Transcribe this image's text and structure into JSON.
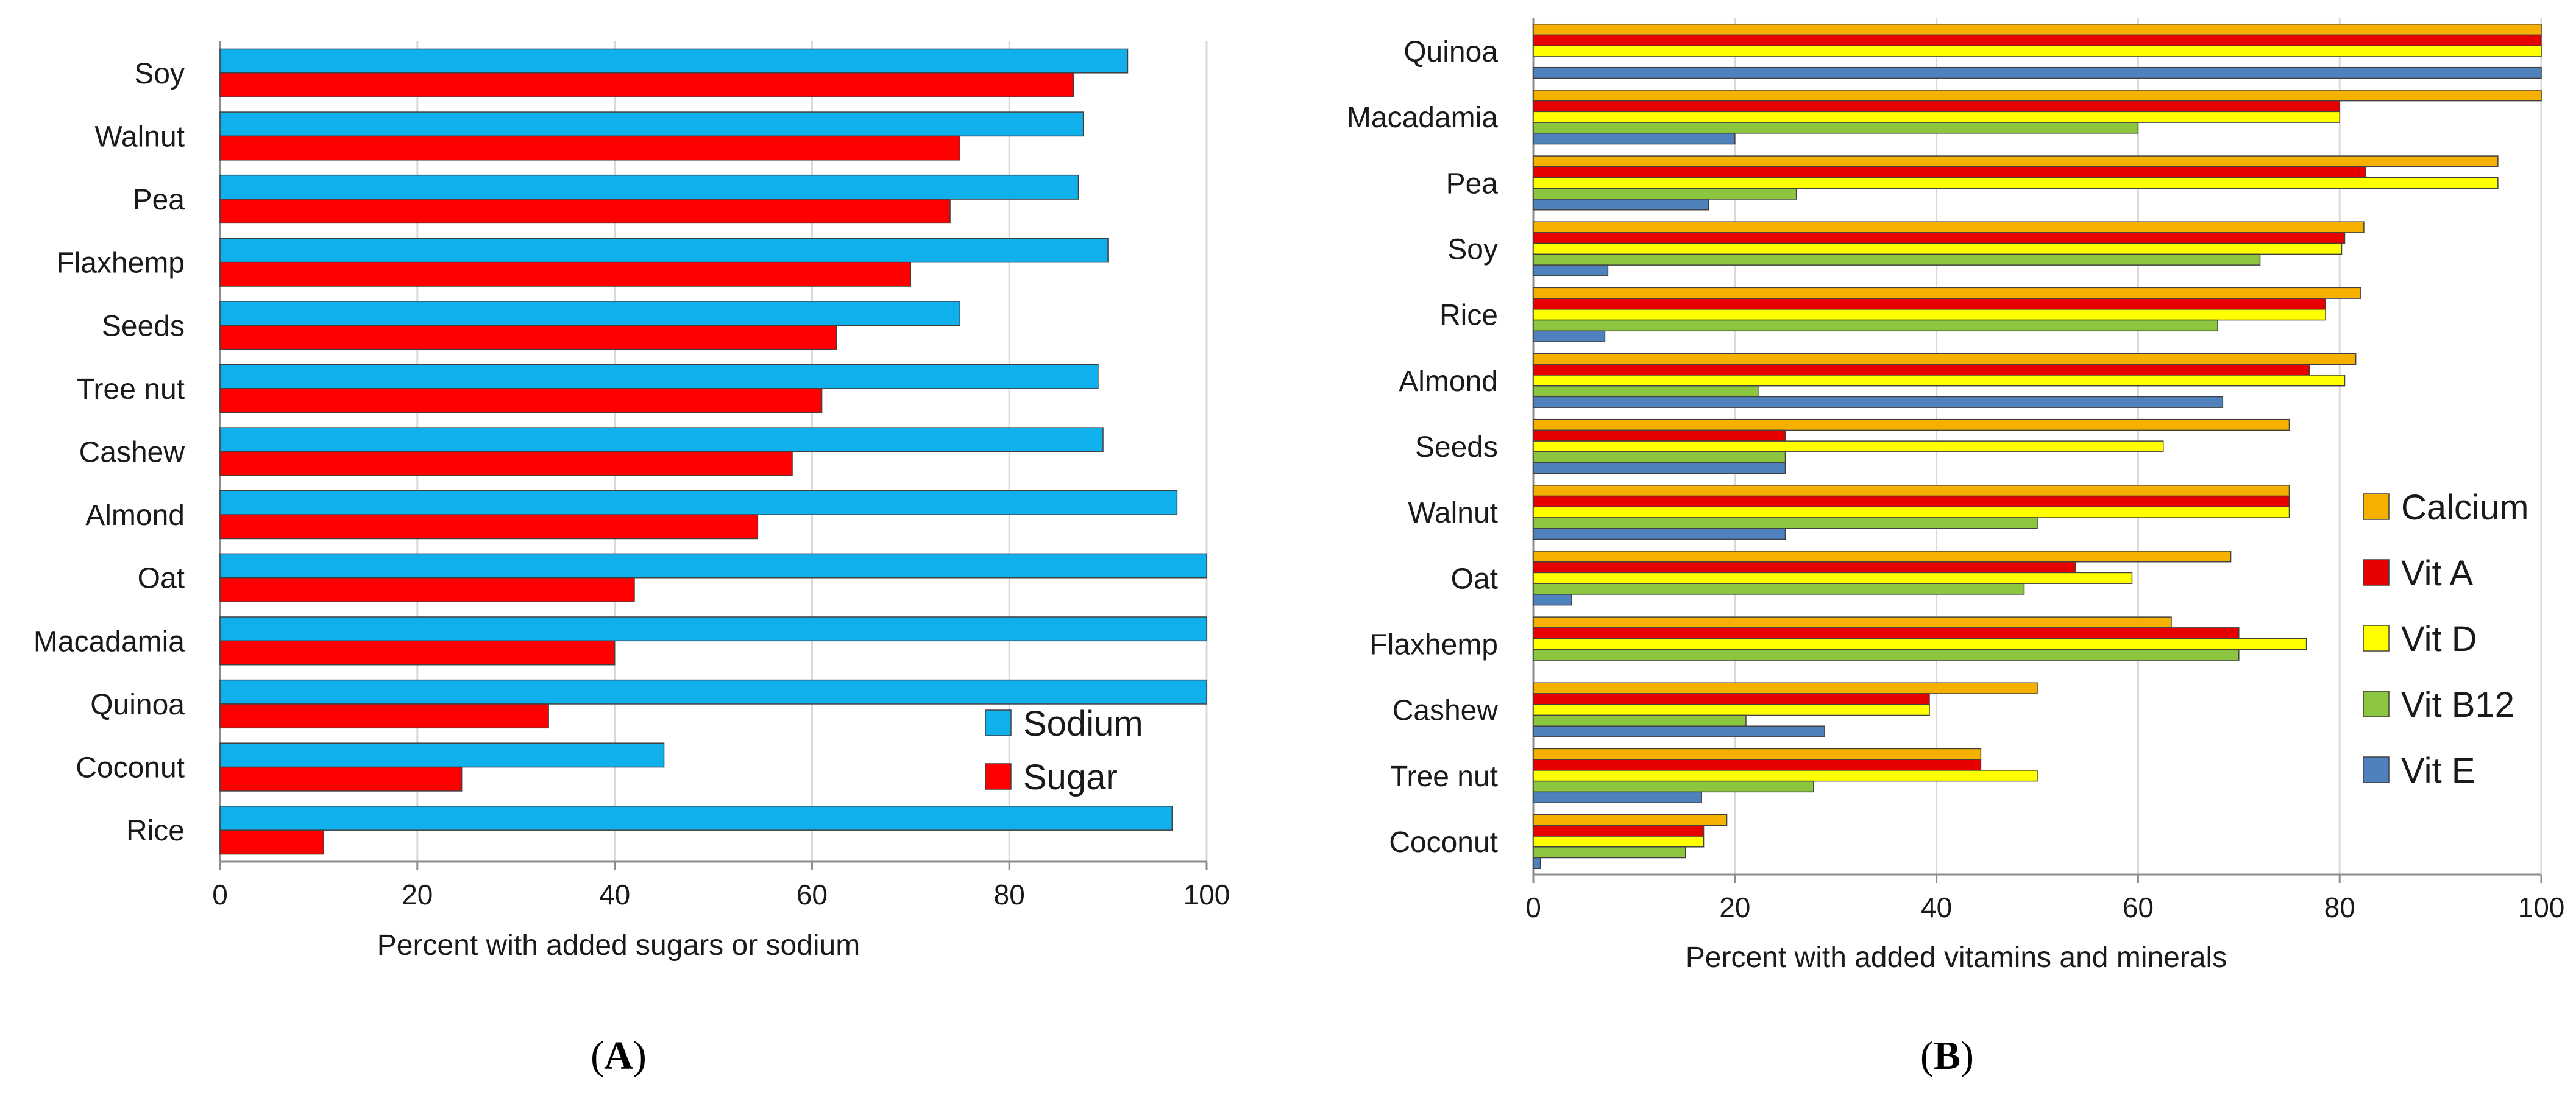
{
  "colors": {
    "sodium": "#10B0EC",
    "sugar": "#FF0000",
    "calcium": "#F5B000",
    "vit_a": "#E60000",
    "vit_d": "#FFFF00",
    "vit_b12": "#8CC63F",
    "vit_e": "#4F81BD",
    "grid": "#D9D9D9",
    "axis": "#8C8C8C"
  },
  "chart_data": [
    {
      "id": "A",
      "panel_label": "A",
      "type": "bar",
      "orientation": "horizontal",
      "categories": [
        "Soy",
        "Walnut",
        "Pea",
        "Flaxhemp",
        "Seeds",
        "Tree nut",
        "Cashew",
        "Almond",
        "Oat",
        "Macadamia",
        "Quinoa",
        "Coconut",
        "Rice"
      ],
      "series": [
        {
          "name": "Sodium",
          "color_key": "sodium",
          "values": [
            92,
            87.5,
            87,
            90,
            75,
            89,
            89.5,
            97,
            100,
            100,
            100,
            45,
            96.5
          ]
        },
        {
          "name": "Sugar",
          "color_key": "sugar",
          "values": [
            86.5,
            75,
            74,
            70,
            62.5,
            61,
            58,
            54.5,
            42,
            40,
            33.3,
            24.5,
            10.5
          ]
        }
      ],
      "xlabel": "Percent with added sugars or sodium",
      "xlim": [
        0,
        100
      ],
      "xticks": [
        "0",
        "20",
        "40",
        "60",
        "80",
        "100"
      ],
      "grid": true,
      "legend": "bottom-right"
    },
    {
      "id": "B",
      "panel_label": "B",
      "type": "bar",
      "orientation": "horizontal",
      "categories": [
        "Quinoa",
        "Macadamia",
        "Pea",
        "Soy",
        "Rice",
        "Almond",
        "Seeds",
        "Walnut",
        "Oat",
        "Flaxhemp",
        "Cashew",
        "Tree nut",
        "Coconut"
      ],
      "series": [
        {
          "name": "Calcium",
          "color_key": "calcium",
          "values": [
            100,
            100,
            95.7,
            82.4,
            82.1,
            81.6,
            75,
            75,
            69.2,
            63.3,
            50,
            44.4,
            19.2
          ]
        },
        {
          "name": "Vit A",
          "color_key": "vit_a",
          "values": [
            100,
            80,
            82.6,
            80.5,
            78.6,
            77,
            25,
            75,
            53.8,
            70,
            39.3,
            44.4,
            16.9
          ]
        },
        {
          "name": "Vit D",
          "color_key": "vit_d",
          "values": [
            100,
            80,
            95.7,
            80.2,
            78.6,
            80.5,
            62.5,
            75,
            59.4,
            76.7,
            39.3,
            50,
            16.9
          ]
        },
        {
          "name": "Vit B12",
          "color_key": "vit_b12",
          "values": [
            0,
            60,
            26.1,
            72.1,
            67.9,
            22.3,
            25,
            50,
            48.7,
            70,
            21.1,
            27.8,
            15.1
          ]
        },
        {
          "name": "Vit E",
          "color_key": "vit_e",
          "values": [
            100,
            20,
            17.4,
            7.4,
            7.1,
            68.4,
            25,
            25,
            3.8,
            0,
            28.9,
            16.7,
            0.7
          ]
        }
      ],
      "xlabel": "Percent with added vitamins and minerals",
      "xlim": [
        0,
        100
      ],
      "xticks": [
        "0",
        "20",
        "40",
        "60",
        "80",
        "100"
      ],
      "grid": true,
      "legend": "right"
    }
  ]
}
